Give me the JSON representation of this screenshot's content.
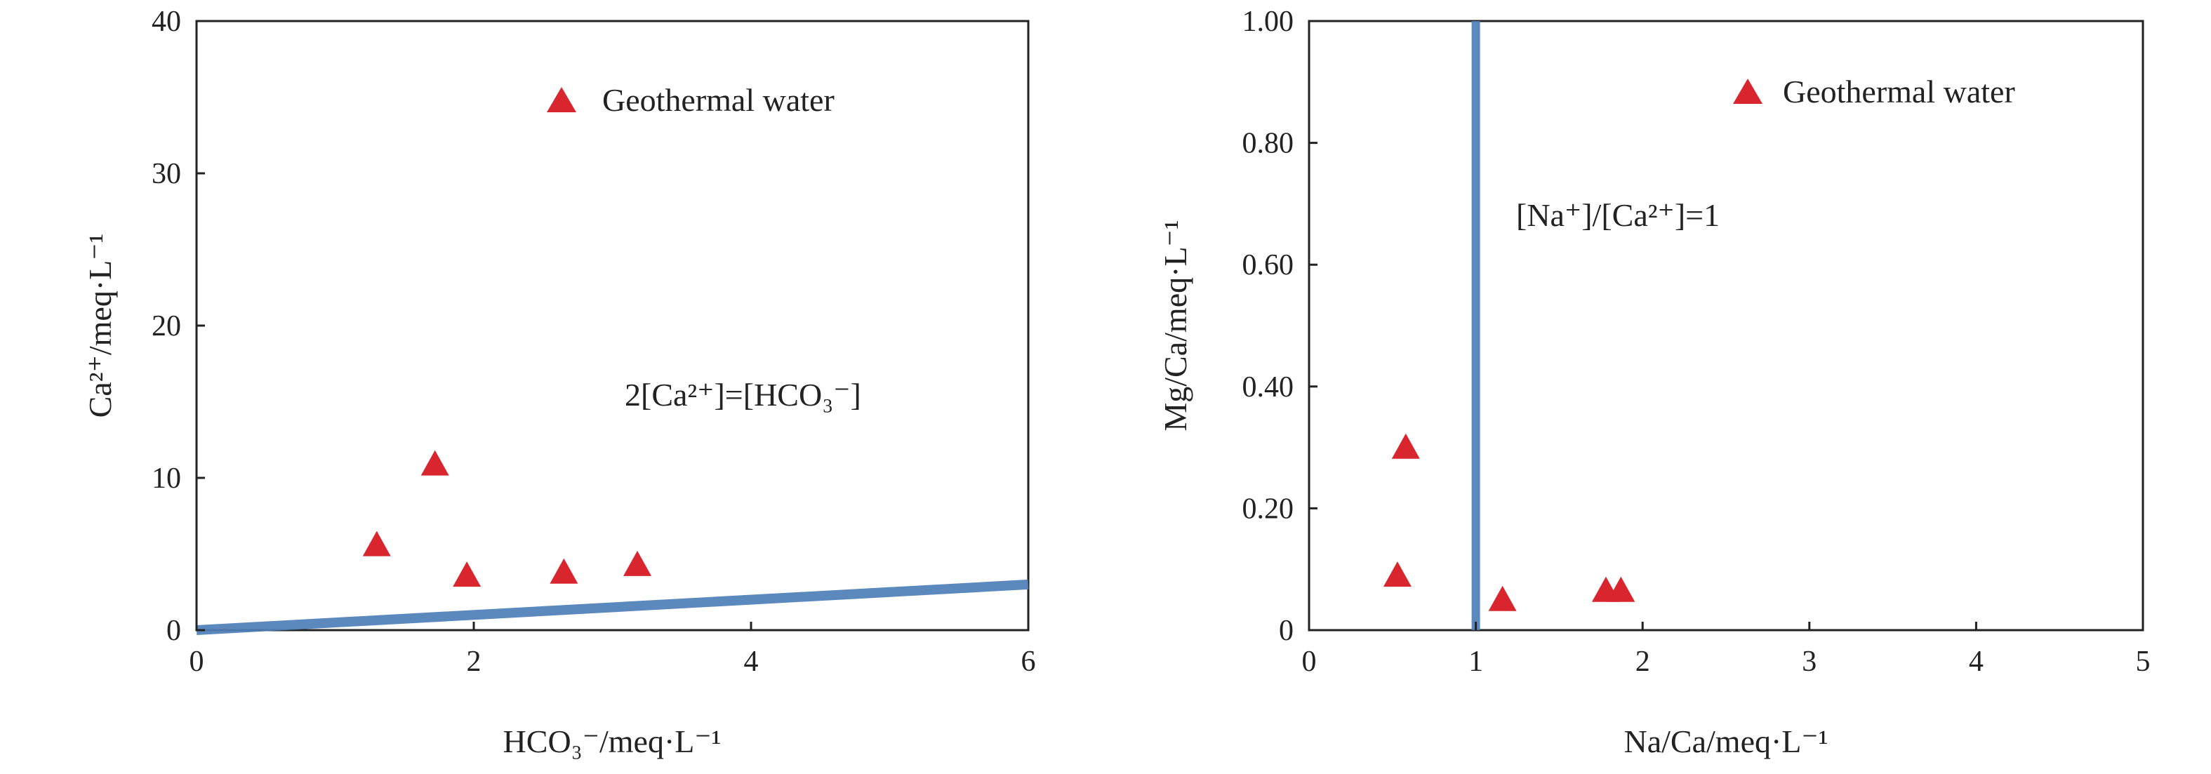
{
  "chart_data": [
    {
      "type": "scatter",
      "xlabel": "HCO₃⁻/meq·L⁻¹",
      "ylabel": "Ca²⁺/meq·L⁻¹",
      "xlim": [
        0,
        6
      ],
      "ylim": [
        0,
        40
      ],
      "xticks": [
        "0",
        "2",
        "4",
        "6"
      ],
      "yticks": [
        "0",
        "10",
        "20",
        "30",
        "40"
      ],
      "grid": false,
      "legend_position": "top-right",
      "marker_color": "#d9262e",
      "line_color": "#4f7fb8",
      "series": [
        {
          "name": "Geothermal water",
          "x": [
            1.3,
            1.72,
            1.95,
            2.65,
            3.18
          ],
          "y": [
            5.6,
            10.9,
            3.6,
            3.8,
            4.3
          ]
        }
      ],
      "reference_line": {
        "label": "2[Ca²⁺]=[HCO₃⁻]",
        "x": [
          0,
          6
        ],
        "y": [
          0,
          3
        ]
      }
    },
    {
      "type": "scatter",
      "xlabel": "Na/Ca/meq·L⁻¹",
      "ylabel": "Mg/Ca/meq·L⁻¹",
      "xlim": [
        0,
        5
      ],
      "ylim": [
        0,
        1
      ],
      "xticks": [
        "0",
        "1",
        "2",
        "3",
        "4",
        "5"
      ],
      "yticks": [
        "0",
        "0.20",
        "0.40",
        "0.60",
        "0.80",
        "1.00"
      ],
      "grid": false,
      "legend_position": "top-right",
      "marker_color": "#d9262e",
      "line_color": "#4f7fb8",
      "series": [
        {
          "name": "Geothermal water",
          "x": [
            0.53,
            0.58,
            1.16,
            1.78,
            1.87
          ],
          "y": [
            0.09,
            0.3,
            0.05,
            0.065,
            0.065
          ]
        }
      ],
      "reference_line": {
        "label": "[Na⁺]/[Ca²⁺]=1",
        "x": [
          1,
          1
        ],
        "y": [
          0,
          1
        ]
      }
    }
  ]
}
